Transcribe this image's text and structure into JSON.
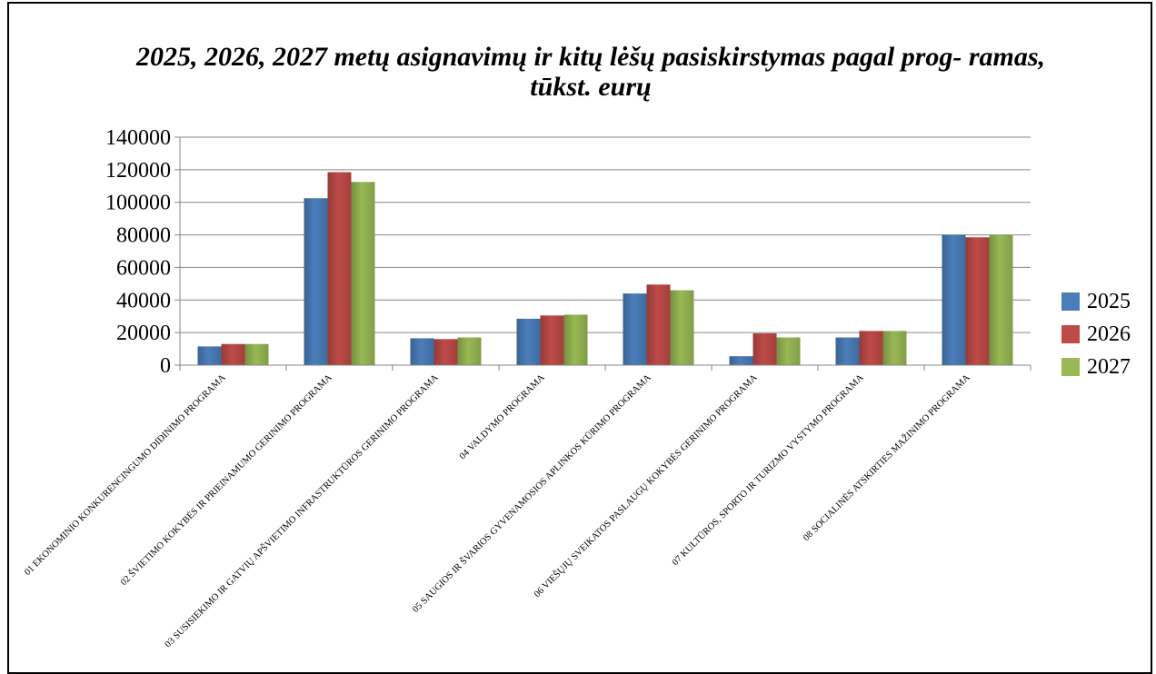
{
  "chart_data": {
    "type": "bar",
    "title": "2025, 2026, 2027 metų asignavimų ir kitų lėšų pasiskirstymas pagal prog- ramas, tūkst. eurų",
    "xlabel": "",
    "ylabel": "",
    "ylim": [
      0,
      140000
    ],
    "yticks": [
      "0",
      "20000",
      "40000",
      "60000",
      "80000",
      "100000",
      "120000",
      "140000"
    ],
    "grid": true,
    "legend_position": "right",
    "categories": [
      "01 EKONOMINIO KONKURENCINGUMO DIDINIMO PROGRAMA",
      "02 ŠVIETIMO KOKYBĖS IR PRIEINAMUMO GERINIMO PROGRAMA",
      "03 SUSISIEKIMO IR GATVIŲ APŠVIETIMO INFRASTRUKTŪROS GERINIMO PROGRAMA",
      "04 VALDYMO PROGRAMA",
      "05 SAUGIOS IR ŠVARIOS GYVENAMOSIOS APLINKOS KŪRIMO PROGRAMA",
      "06 VIEŠŲJŲ SVEIKATOS PASLAUGŲ KOKYBĖS GERINIMO PROGRAMA",
      "07 KULTŪROS, SPORTO IR TURIZMO VYSTYMO PROGRAMA",
      "08 SOCIALINĖS ATSKIRTIES MAŽINIMO PROGRAMA"
    ],
    "series": [
      {
        "name": "2025",
        "color": "#4a7ebb",
        "values": [
          11500,
          102500,
          16500,
          28500,
          44000,
          5500,
          17000,
          80000
        ]
      },
      {
        "name": "2026",
        "color": "#be4b48",
        "values": [
          13000,
          118500,
          16000,
          30500,
          49500,
          19500,
          21000,
          78500
        ]
      },
      {
        "name": "2027",
        "color": "#98b954",
        "values": [
          13000,
          112500,
          17000,
          31000,
          46000,
          17000,
          21000,
          80000
        ]
      }
    ]
  }
}
